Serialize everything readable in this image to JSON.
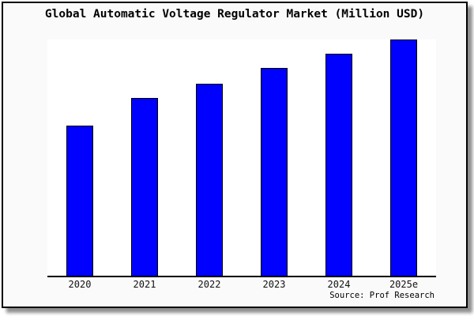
{
  "title": "Global Automatic Voltage Regulator Market (Million USD)",
  "source": "Source: Prof Research",
  "colors": {
    "bar_fill": "#0000ff",
    "bar_outline": "#000000",
    "frame_bg": "#fafafa",
    "plot_bg": "#ffffff",
    "axis": "#000000",
    "shadow": "#8f8f8f"
  },
  "chart_data": {
    "type": "bar",
    "title": "Global Automatic Voltage Regulator Market (Million USD)",
    "categories": [
      "2020",
      "2021",
      "2022",
      "2023",
      "2024",
      "2025e"
    ],
    "values": [
      63.7,
      75.3,
      81.3,
      88,
      94,
      100
    ],
    "units": "relative index (no y-axis scale shown; tallest bar 2025e = 100)",
    "xlabel": "",
    "ylabel": "",
    "ylim": [
      0,
      100
    ],
    "grid": false,
    "legend": false,
    "annotations": [
      "Source: Prof Research"
    ]
  }
}
